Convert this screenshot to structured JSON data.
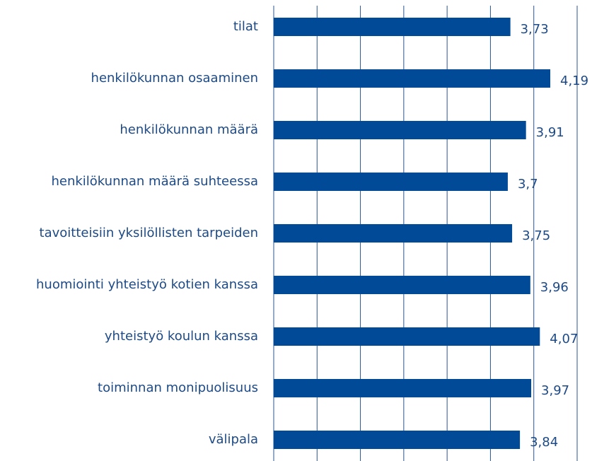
{
  "chart_data": {
    "type": "barh",
    "categories": [
      "tilat",
      "henkilökunnan osaaminen",
      "henkilökunnan määrä",
      "henkilökunnan määrä suhteessa",
      "tavoitteisiin yksilöllisten tarpeiden",
      "huomiointi yhteistyö kotien kanssa",
      "yhteistyö koulun kanssa",
      "toiminnan monipuolisuus",
      "välipala"
    ],
    "values": [
      3.73,
      4.19,
      3.91,
      3.7,
      3.75,
      3.96,
      4.07,
      3.97,
      3.84
    ],
    "value_labels": [
      "3,73",
      "4,19",
      "3,91",
      "3,7",
      "3,75",
      "3,96",
      "4,07",
      "3,97",
      "3,84"
    ],
    "color": "#004a98",
    "xlim": [
      1,
      4.5
    ],
    "xticks": [
      1,
      1.5,
      2,
      2.5,
      3,
      3.5,
      4,
      4.5
    ],
    "grid": true,
    "show_tick_labels": false
  }
}
